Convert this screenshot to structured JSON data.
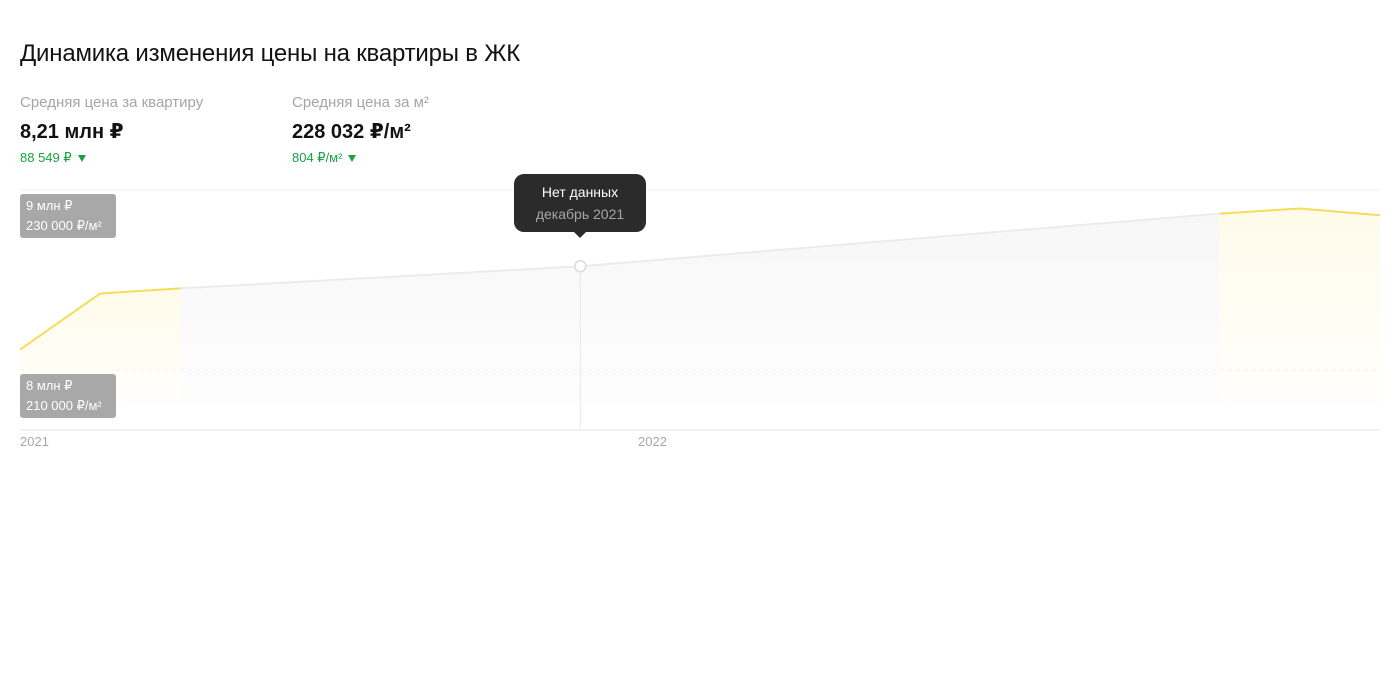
{
  "header": {
    "title": "Динамика изменения цены на квартиры в ЖК"
  },
  "stats": [
    {
      "label": "Средняя цена за квартиру",
      "value": "8,21 млн ₽",
      "change": "88 549 ₽",
      "change_direction": "down"
    },
    {
      "label": "Средняя цена за м²",
      "value": "228 032 ₽/м²",
      "change": "804 ₽/м²",
      "change_direction": "down"
    }
  ],
  "colors": {
    "line": "#f5dd5c",
    "area": "#fffbea",
    "no_data_line": "#ececec",
    "no_data_area": "#f7f7f7",
    "change_down": "#17a340",
    "badge_bg": "#a8a8a8",
    "tooltip_bg": "#2b2b2b"
  },
  "tooltip": {
    "title": "Нет данных",
    "subtitle": "декабрь 2021"
  },
  "chart_data": {
    "type": "area",
    "y_units": "млн ₽",
    "y_ticks": [
      {
        "value": 9,
        "label_price": "9 млн ₽",
        "label_sqm": "230 000 ₽/м²"
      },
      {
        "value": 8,
        "label_price": "8 млн ₽",
        "label_sqm": "210 000 ₽/м²"
      }
    ],
    "ylim": [
      7.6,
      9.0
    ],
    "x_ticks": [
      {
        "t": 0.0,
        "label": "2021"
      },
      {
        "t": 0.455,
        "label": "2022"
      }
    ],
    "series": [
      {
        "segment": "data",
        "points": [
          {
            "t": 0.0,
            "y": 8.12
          },
          {
            "t": 0.059,
            "y": 8.45
          },
          {
            "t": 0.118,
            "y": 8.48
          }
        ]
      },
      {
        "segment": "no-data",
        "points": [
          {
            "t": 0.118,
            "y": 8.48
          },
          {
            "t": 0.412,
            "y": 8.61
          },
          {
            "t": 0.882,
            "y": 8.92
          }
        ]
      },
      {
        "segment": "data",
        "points": [
          {
            "t": 0.882,
            "y": 8.92
          },
          {
            "t": 0.941,
            "y": 8.95
          },
          {
            "t": 1.0,
            "y": 8.91
          }
        ]
      }
    ],
    "hover": {
      "t": 0.412,
      "y": 8.61
    },
    "dashed_line_y": 8.0,
    "grid": true
  }
}
